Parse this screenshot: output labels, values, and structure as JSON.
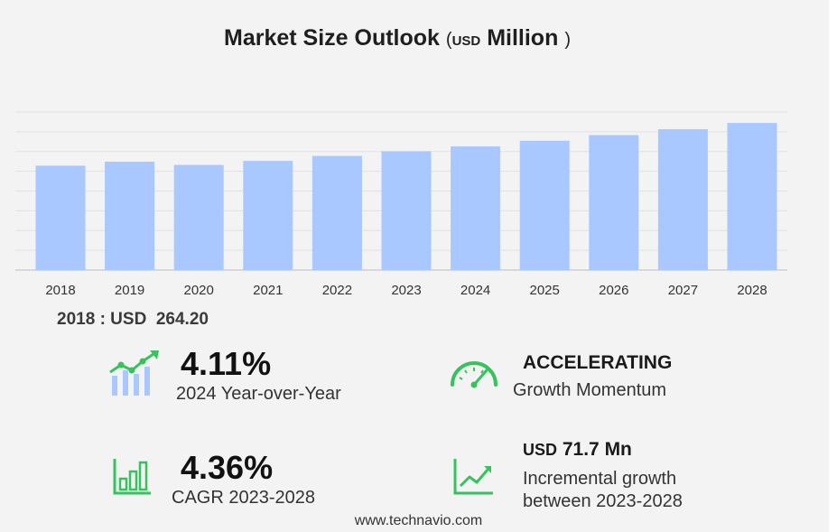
{
  "title": {
    "main": "Market Size Outlook",
    "open": "(",
    "currency": "USD",
    "unit": "Million",
    "close": ")"
  },
  "chart_data": {
    "type": "bar",
    "categories": [
      "2018",
      "2019",
      "2020",
      "2021",
      "2022",
      "2023",
      "2024",
      "2025",
      "2026",
      "2027",
      "2028"
    ],
    "values": [
      264.2,
      274.3,
      266.0,
      276.3,
      288.8,
      300.6,
      312.9,
      327.3,
      341.6,
      356.4,
      372.3
    ],
    "ylim": [
      0,
      400
    ],
    "grid": true,
    "bar_color": "#a9c8ff"
  },
  "base_value": {
    "year": "2018",
    "sep": ":",
    "currency": "USD",
    "value": "264.20"
  },
  "stats": {
    "yoy": {
      "value": "4.11%",
      "label": "2024 Year-over-Year"
    },
    "momentum": {
      "value": "ACCELERATING",
      "label": "Growth Momentum"
    },
    "cagr": {
      "value": "4.36%",
      "label": "CAGR 2023-2028"
    },
    "incremental": {
      "currency": "USD",
      "value": "71.7 Mn",
      "label_line1": "Incremental growth",
      "label_line2": "between 2023-2028"
    }
  },
  "icons": {
    "yoy": "growth-chart-icon",
    "momentum": "speedometer-icon",
    "cagr": "bar-chart-icon",
    "incremental": "trend-line-icon"
  },
  "accent_color": "#37c25e",
  "footer": "www.technavio.com"
}
